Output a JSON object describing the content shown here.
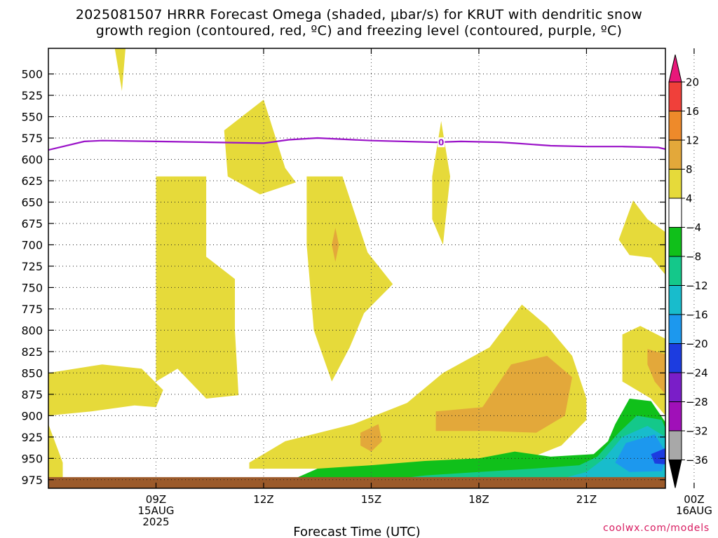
{
  "title_line1": "2025081507 HRRR Forecast Omega (shaded, μbar/s) for KRUT with dendritic snow",
  "title_line2": "growth region (contoured, red, ºC) and freezing level (contoured, purple, ºC)",
  "credit": "coolwx.com/models",
  "chart_data": {
    "type": "heatmap",
    "xlabel": "Forecast Time (UTC)",
    "ylabel": "",
    "x_range_hours": [
      6.0,
      23.2
    ],
    "y_range_mb": [
      470,
      985
    ],
    "y_ticks": [
      500,
      525,
      550,
      575,
      600,
      625,
      650,
      675,
      700,
      725,
      750,
      775,
      800,
      825,
      850,
      875,
      900,
      925,
      950,
      975
    ],
    "x_ticks": [
      {
        "hour": 9,
        "lines": [
          "09Z",
          "15AUG",
          "2025"
        ]
      },
      {
        "hour": 12,
        "lines": [
          "12Z"
        ]
      },
      {
        "hour": 15,
        "lines": [
          "15Z"
        ]
      },
      {
        "hour": 18,
        "lines": [
          "18Z"
        ]
      },
      {
        "hour": 21,
        "lines": [
          "21Z"
        ]
      },
      {
        "hour": 24,
        "lines": [
          "00Z",
          "16AUG"
        ]
      }
    ],
    "grid": true,
    "colorbar": {
      "placement": "right",
      "labels": [
        "20",
        "16",
        "12",
        "8",
        "4",
        "−4",
        "−8",
        "−12",
        "−16",
        "−20",
        "−24",
        "−28",
        "−32",
        "−36"
      ],
      "bins": [
        {
          "color": "#e8177a",
          "range": [
            20,
            null
          ]
        },
        {
          "color": "#f0403a",
          "range": [
            16,
            20
          ]
        },
        {
          "color": "#ee8a2a",
          "range": [
            12,
            16
          ]
        },
        {
          "color": "#e3a83a",
          "range": [
            8,
            12
          ]
        },
        {
          "color": "#e6da3a",
          "range": [
            4,
            8
          ]
        },
        {
          "color": "#ffffff",
          "range": [
            -4,
            4
          ]
        },
        {
          "color": "#10c01a",
          "range": [
            -8,
            -4
          ]
        },
        {
          "color": "#14c88a",
          "range": [
            -12,
            -8
          ]
        },
        {
          "color": "#18bccc",
          "range": [
            -16,
            -12
          ]
        },
        {
          "color": "#1c98ee",
          "range": [
            -20,
            -16
          ]
        },
        {
          "color": "#1c3ce0",
          "range": [
            -24,
            -20
          ]
        },
        {
          "color": "#7a1ec8",
          "range": [
            -28,
            -24
          ]
        },
        {
          "color": "#a010b8",
          "range": [
            -32,
            -28
          ]
        },
        {
          "color": "#a8a8a8",
          "range": [
            -36,
            -32
          ]
        },
        {
          "color": "#000000",
          "range": [
            null,
            -36
          ]
        }
      ]
    },
    "freezing_level": {
      "label": "0",
      "color": "#9a12c8",
      "label_point": [
        16.95,
        580
      ],
      "points": [
        [
          6.0,
          589
        ],
        [
          7.0,
          579
        ],
        [
          7.5,
          578
        ],
        [
          9.0,
          579
        ],
        [
          10.5,
          580
        ],
        [
          12.0,
          581
        ],
        [
          12.7,
          577
        ],
        [
          13.5,
          575
        ],
        [
          15.0,
          578
        ],
        [
          16.8,
          580
        ],
        [
          17.5,
          579
        ],
        [
          18.6,
          580
        ],
        [
          19.0,
          581
        ],
        [
          20.0,
          584
        ],
        [
          21.0,
          585
        ],
        [
          22.0,
          585
        ],
        [
          23.0,
          586
        ],
        [
          23.2,
          588
        ]
      ]
    },
    "surface_band": {
      "color": "#9b5a2a",
      "top_mb": 972
    },
    "omega_regions": [
      {
        "value_bin": "4 to 8",
        "color": "#e6da3a",
        "points": [
          [
            7.85,
            470
          ],
          [
            8.15,
            470
          ],
          [
            8.05,
            520
          ]
        ]
      },
      {
        "value_bin": "4 to 8",
        "color": "#e6da3a",
        "points": [
          [
            10.9,
            566
          ],
          [
            12.0,
            530
          ],
          [
            12.6,
            610
          ],
          [
            12.9,
            627
          ],
          [
            11.9,
            641
          ],
          [
            11.0,
            620
          ]
        ]
      },
      {
        "value_bin": "4 to 8",
        "color": "#e6da3a",
        "points": [
          [
            9.0,
            620
          ],
          [
            10.4,
            620
          ],
          [
            10.4,
            714
          ],
          [
            11.2,
            740
          ],
          [
            11.2,
            800
          ],
          [
            11.3,
            876
          ],
          [
            10.4,
            880
          ],
          [
            9.6,
            845
          ],
          [
            9.0,
            860
          ]
        ]
      },
      {
        "value_bin": "4 to 8",
        "color": "#e6da3a",
        "points": [
          [
            13.2,
            620
          ],
          [
            14.2,
            620
          ],
          [
            14.9,
            709
          ],
          [
            15.6,
            746
          ],
          [
            14.8,
            780
          ],
          [
            14.4,
            820
          ],
          [
            13.9,
            860
          ],
          [
            13.4,
            800
          ],
          [
            13.2,
            700
          ]
        ]
      },
      {
        "value_bin": "4 to 8",
        "color": "#e6da3a",
        "points": [
          [
            16.7,
            620
          ],
          [
            16.95,
            555
          ],
          [
            17.2,
            620
          ],
          [
            17.0,
            700
          ],
          [
            16.7,
            670
          ]
        ]
      },
      {
        "value_bin": "4 to 8",
        "color": "#e6da3a",
        "points": [
          [
            6.0,
            850
          ],
          [
            7.5,
            840
          ],
          [
            8.6,
            845
          ],
          [
            9.2,
            870
          ],
          [
            9.0,
            890
          ],
          [
            8.4,
            888
          ],
          [
            7.2,
            895
          ],
          [
            6.0,
            900
          ]
        ]
      },
      {
        "value_bin": "4 to 8",
        "color": "#e6da3a",
        "points": [
          [
            6.0,
            910
          ],
          [
            6.4,
            955
          ],
          [
            6.4,
            985
          ],
          [
            6.0,
            985
          ]
        ]
      },
      {
        "value_bin": "4 to 8",
        "color": "#e6da3a",
        "points": [
          [
            11.6,
            955
          ],
          [
            12.6,
            930
          ],
          [
            14.5,
            910
          ],
          [
            16.0,
            885
          ],
          [
            17.0,
            850
          ],
          [
            18.3,
            820
          ],
          [
            19.2,
            770
          ],
          [
            19.9,
            795
          ],
          [
            20.6,
            830
          ],
          [
            21.0,
            880
          ],
          [
            21.0,
            905
          ],
          [
            20.3,
            935
          ],
          [
            19.4,
            950
          ],
          [
            18.0,
            955
          ],
          [
            16.0,
            960
          ],
          [
            14.0,
            962
          ],
          [
            12.5,
            962
          ],
          [
            11.6,
            962
          ]
        ]
      },
      {
        "value_bin": "4 to 8",
        "color": "#e6da3a",
        "points": [
          [
            22.0,
            805
          ],
          [
            22.5,
            795
          ],
          [
            23.2,
            810
          ],
          [
            23.2,
            900
          ],
          [
            22.8,
            880
          ],
          [
            22.0,
            860
          ]
        ]
      },
      {
        "value_bin": "4 to 8",
        "color": "#e6da3a",
        "points": [
          [
            21.9,
            694
          ],
          [
            22.3,
            648
          ],
          [
            22.7,
            670
          ],
          [
            23.2,
            685
          ],
          [
            23.2,
            735
          ],
          [
            22.8,
            715
          ],
          [
            22.2,
            712
          ]
        ]
      },
      {
        "value_bin": "8 to 12",
        "color": "#e3a83a",
        "points": [
          [
            14.0,
            680
          ],
          [
            14.1,
            700
          ],
          [
            14.0,
            720
          ],
          [
            13.9,
            700
          ]
        ]
      },
      {
        "value_bin": "8 to 12",
        "color": "#e3a83a",
        "points": [
          [
            14.7,
            920
          ],
          [
            15.2,
            910
          ],
          [
            15.3,
            930
          ],
          [
            15.0,
            942
          ],
          [
            14.7,
            935
          ]
        ]
      },
      {
        "value_bin": "8 to 12",
        "color": "#e3a83a",
        "points": [
          [
            16.8,
            895
          ],
          [
            18.1,
            890
          ],
          [
            18.9,
            840
          ],
          [
            19.9,
            830
          ],
          [
            20.6,
            855
          ],
          [
            20.4,
            900
          ],
          [
            19.6,
            920
          ],
          [
            18.3,
            918
          ],
          [
            16.8,
            918
          ]
        ]
      },
      {
        "value_bin": "8 to 12",
        "color": "#e3a83a",
        "points": [
          [
            22.7,
            822
          ],
          [
            23.2,
            828
          ],
          [
            23.2,
            875
          ],
          [
            22.9,
            860
          ],
          [
            22.7,
            840
          ]
        ]
      },
      {
        "value_bin": "-4 to -8",
        "color": "#10c01a",
        "points": [
          [
            12.8,
            975
          ],
          [
            13.5,
            962
          ],
          [
            15.0,
            958
          ],
          [
            16.5,
            953
          ],
          [
            18.0,
            950
          ],
          [
            19.0,
            942
          ],
          [
            20.0,
            948
          ],
          [
            21.2,
            945
          ],
          [
            21.6,
            930
          ],
          [
            21.8,
            910
          ],
          [
            22.2,
            880
          ],
          [
            22.8,
            883
          ],
          [
            23.4,
            920
          ],
          [
            23.7,
            960
          ],
          [
            23.7,
            975
          ]
        ]
      },
      {
        "value_bin": "-8 to -12",
        "color": "#14c88a",
        "points": [
          [
            15.5,
            975
          ],
          [
            16.5,
            970
          ],
          [
            18.0,
            966
          ],
          [
            19.5,
            962
          ],
          [
            20.8,
            958
          ],
          [
            21.3,
            948
          ],
          [
            21.9,
            920
          ],
          [
            22.4,
            900
          ],
          [
            23.1,
            905
          ],
          [
            23.5,
            945
          ],
          [
            23.5,
            975
          ]
        ]
      },
      {
        "value_bin": "-12 to -16",
        "color": "#18bccc",
        "points": [
          [
            20.2,
            975
          ],
          [
            21.0,
            966
          ],
          [
            21.5,
            950
          ],
          [
            22.0,
            925
          ],
          [
            22.7,
            912
          ],
          [
            23.2,
            925
          ],
          [
            23.4,
            960
          ],
          [
            23.4,
            975
          ]
        ]
      },
      {
        "value_bin": "-16 to -20",
        "color": "#1c98ee",
        "points": [
          [
            21.8,
            955
          ],
          [
            22.1,
            932
          ],
          [
            22.9,
            922
          ],
          [
            23.25,
            945
          ],
          [
            23.1,
            965
          ],
          [
            22.2,
            966
          ]
        ]
      },
      {
        "value_bin": "-20 to -24",
        "color": "#1c3ce0",
        "points": [
          [
            22.8,
            945
          ],
          [
            23.2,
            938
          ],
          [
            23.2,
            957
          ],
          [
            22.9,
            956
          ]
        ]
      }
    ]
  }
}
